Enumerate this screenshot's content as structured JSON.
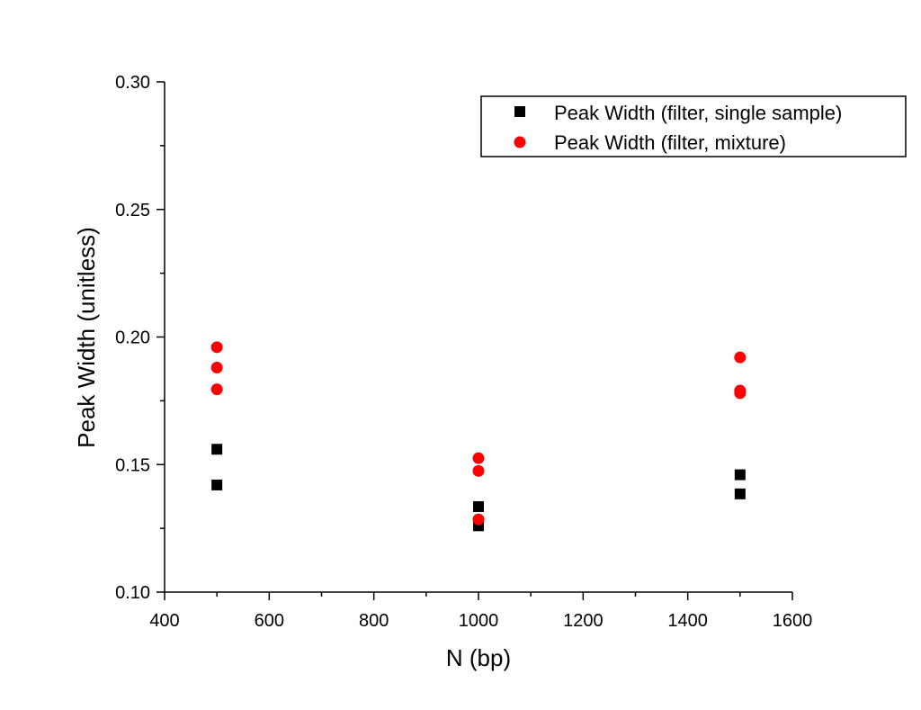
{
  "chart_data": {
    "type": "scatter",
    "title": "",
    "xlabel": "N (bp)",
    "ylabel": "Peak Width (unitless)",
    "xlim": [
      400,
      1600
    ],
    "ylim": [
      0.1,
      0.3
    ],
    "x_ticks": [
      "400",
      "600",
      "800",
      "1000",
      "1200",
      "1400",
      "1600"
    ],
    "y_ticks": [
      "0.10",
      "0.15",
      "0.20",
      "0.25",
      "0.30"
    ],
    "grid": false,
    "legend_position": "top-right",
    "series": [
      {
        "name": "Peak Width (filter, single sample)",
        "marker": "square",
        "color": "#000000",
        "points": [
          {
            "x": 500,
            "y": 0.156
          },
          {
            "x": 500,
            "y": 0.142
          },
          {
            "x": 1000,
            "y": 0.1335
          },
          {
            "x": 1000,
            "y": 0.126
          },
          {
            "x": 1500,
            "y": 0.146
          },
          {
            "x": 1500,
            "y": 0.1385
          }
        ]
      },
      {
        "name": "Peak Width (filter, mixture)",
        "marker": "circle",
        "color": "#ff0000",
        "points": [
          {
            "x": 500,
            "y": 0.196
          },
          {
            "x": 500,
            "y": 0.188
          },
          {
            "x": 500,
            "y": 0.1795
          },
          {
            "x": 1000,
            "y": 0.1525
          },
          {
            "x": 1000,
            "y": 0.1475
          },
          {
            "x": 1000,
            "y": 0.1285
          },
          {
            "x": 1500,
            "y": 0.192
          },
          {
            "x": 1500,
            "y": 0.179
          },
          {
            "x": 1500,
            "y": 0.178
          }
        ]
      }
    ]
  }
}
